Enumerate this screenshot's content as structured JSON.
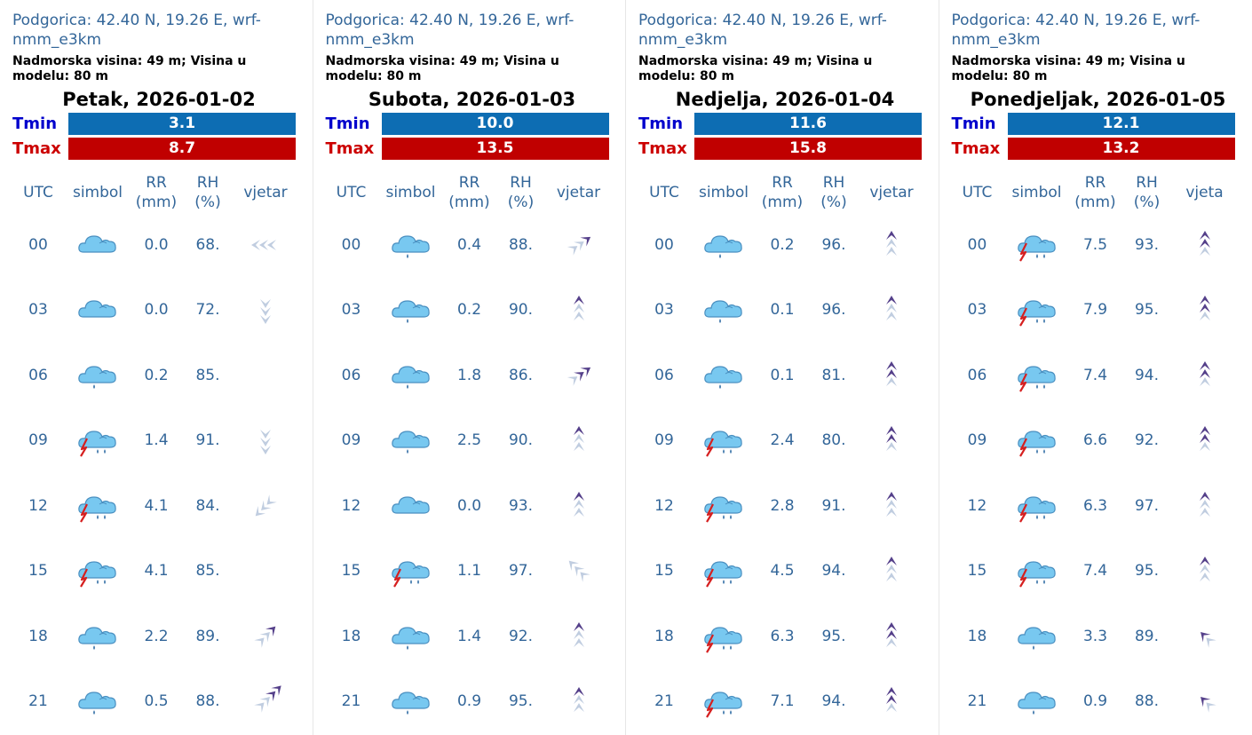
{
  "headers": {
    "utc": "UTC",
    "simbol": "simbol",
    "rr": "RR\n(mm)",
    "rh": "RH\n(%)",
    "wind": "vjetar",
    "wind_cut": "vjeta"
  },
  "labels": {
    "tmin": "Tmin",
    "tmax": "Tmax"
  },
  "days": [
    {
      "location": "Podgorica: 42.40 N, 19.26 E, wrf-nmm_e3km",
      "elevation": "Nadmorska visina: 49 m; Visina u modelu: 80 m",
      "date": "Petak, 2026-01-02",
      "tmin": "3.1",
      "tmax": "8.7",
      "wind_header": "vjetar",
      "rows": [
        {
          "utc": "00",
          "symbol": "cloud-icon",
          "rr": "0.0",
          "rh": "68.",
          "wind": {
            "dir": 270,
            "light": 3,
            "dark": 0
          }
        },
        {
          "utc": "03",
          "symbol": "cloud-icon",
          "rr": "0.0",
          "rh": "72.",
          "wind": {
            "dir": 180,
            "light": 3,
            "dark": 0
          }
        },
        {
          "utc": "06",
          "symbol": "cloud-rain-icon",
          "rr": "0.2",
          "rh": "85.",
          "wind": null
        },
        {
          "utc": "09",
          "symbol": "cloud-thunder-rain-icon",
          "rr": "1.4",
          "rh": "91.",
          "wind": {
            "dir": 180,
            "light": 3,
            "dark": 0
          }
        },
        {
          "utc": "12",
          "symbol": "cloud-thunder-rain-icon",
          "rr": "4.1",
          "rh": "84.",
          "wind": {
            "dir": 225,
            "light": 3,
            "dark": 0
          }
        },
        {
          "utc": "15",
          "symbol": "cloud-thunder-rain-icon",
          "rr": "4.1",
          "rh": "85.",
          "wind": null
        },
        {
          "utc": "18",
          "symbol": "cloud-rain-icon",
          "rr": "2.2",
          "rh": "89.",
          "wind": {
            "dir": 45,
            "light": 2,
            "dark": 1
          }
        },
        {
          "utc": "21",
          "symbol": "cloud-rain-icon",
          "rr": "0.5",
          "rh": "88.",
          "wind": {
            "dir": 45,
            "light": 2,
            "dark": 2
          }
        }
      ]
    },
    {
      "location": "Podgorica: 42.40 N, 19.26 E, wrf-nmm_e3km",
      "elevation": "Nadmorska visina: 49 m; Visina u modelu: 80 m",
      "date": "Subota, 2026-01-03",
      "tmin": "10.0",
      "tmax": "13.5",
      "wind_header": "vjetar",
      "rows": [
        {
          "utc": "00",
          "symbol": "cloud-rain-icon",
          "rr": "0.4",
          "rh": "88.",
          "wind": {
            "dir": 55,
            "light": 2,
            "dark": 1
          }
        },
        {
          "utc": "03",
          "symbol": "cloud-rain-icon",
          "rr": "0.2",
          "rh": "90.",
          "wind": {
            "dir": 0,
            "light": 2,
            "dark": 1
          }
        },
        {
          "utc": "06",
          "symbol": "cloud-rain-icon",
          "rr": "1.8",
          "rh": "86.",
          "wind": {
            "dir": 55,
            "light": 1,
            "dark": 2
          }
        },
        {
          "utc": "09",
          "symbol": "cloud-rain-icon",
          "rr": "2.5",
          "rh": "90.",
          "wind": {
            "dir": 0,
            "light": 2,
            "dark": 1
          }
        },
        {
          "utc": "12",
          "symbol": "cloud-icon",
          "rr": "0.0",
          "rh": "93.",
          "wind": {
            "dir": 0,
            "light": 2,
            "dark": 1
          }
        },
        {
          "utc": "15",
          "symbol": "cloud-thunder-rain-icon",
          "rr": "1.1",
          "rh": "97.",
          "wind": {
            "dir": 315,
            "light": 3,
            "dark": 0
          }
        },
        {
          "utc": "18",
          "symbol": "cloud-rain-icon",
          "rr": "1.4",
          "rh": "92.",
          "wind": {
            "dir": 0,
            "light": 2,
            "dark": 1
          }
        },
        {
          "utc": "21",
          "symbol": "cloud-rain-icon",
          "rr": "0.9",
          "rh": "95.",
          "wind": {
            "dir": 0,
            "light": 2,
            "dark": 1
          }
        }
      ]
    },
    {
      "location": "Podgorica: 42.40 N, 19.26 E, wrf-nmm_e3km",
      "elevation": "Nadmorska visina: 49 m; Visina u modelu: 80 m",
      "date": "Nedjelja, 2026-01-04",
      "tmin": "11.6",
      "tmax": "15.8",
      "wind_header": "vjetar",
      "rows": [
        {
          "utc": "00",
          "symbol": "cloud-rain-icon",
          "rr": "0.2",
          "rh": "96.",
          "wind": {
            "dir": 0,
            "light": 2,
            "dark": 1
          }
        },
        {
          "utc": "03",
          "symbol": "cloud-rain-icon",
          "rr": "0.1",
          "rh": "96.",
          "wind": {
            "dir": 0,
            "light": 2,
            "dark": 1
          }
        },
        {
          "utc": "06",
          "symbol": "cloud-rain-icon",
          "rr": "0.1",
          "rh": "81.",
          "wind": {
            "dir": 0,
            "light": 1,
            "dark": 2
          }
        },
        {
          "utc": "09",
          "symbol": "cloud-thunder-rain-icon",
          "rr": "2.4",
          "rh": "80.",
          "wind": {
            "dir": 0,
            "light": 1,
            "dark": 2
          }
        },
        {
          "utc": "12",
          "symbol": "cloud-thunder-rain-icon",
          "rr": "2.8",
          "rh": "91.",
          "wind": {
            "dir": 0,
            "light": 2,
            "dark": 1
          }
        },
        {
          "utc": "15",
          "symbol": "cloud-thunder-rain-icon",
          "rr": "4.5",
          "rh": "94.",
          "wind": {
            "dir": 0,
            "light": 2,
            "dark": 1
          }
        },
        {
          "utc": "18",
          "symbol": "cloud-thunder-rain-icon",
          "rr": "6.3",
          "rh": "95.",
          "wind": {
            "dir": 0,
            "light": 1,
            "dark": 2
          }
        },
        {
          "utc": "21",
          "symbol": "cloud-thunder-rain-icon",
          "rr": "7.1",
          "rh": "94.",
          "wind": {
            "dir": 0,
            "light": 1,
            "dark": 2
          }
        }
      ]
    },
    {
      "location": "Podgorica: 42.40 N, 19.26 E, wrf-nmm_e3km",
      "elevation": "Nadmorska visina: 49 m; Visina u modelu: 80 m",
      "date": "Ponedjeljak, 2026-01-05",
      "tmin": "12.1",
      "tmax": "13.2",
      "wind_header": "vjeta",
      "rows": [
        {
          "utc": "00",
          "symbol": "cloud-thunder-rain-icon",
          "rr": "7.5",
          "rh": "93.",
          "wind": {
            "dir": 0,
            "light": 1,
            "dark": 2
          }
        },
        {
          "utc": "03",
          "symbol": "cloud-thunder-rain-icon",
          "rr": "7.9",
          "rh": "95.",
          "wind": {
            "dir": 0,
            "light": 1,
            "dark": 2
          }
        },
        {
          "utc": "06",
          "symbol": "cloud-thunder-rain-icon",
          "rr": "7.4",
          "rh": "94.",
          "wind": {
            "dir": 0,
            "light": 1,
            "dark": 2
          }
        },
        {
          "utc": "09",
          "symbol": "cloud-thunder-rain-icon",
          "rr": "6.6",
          "rh": "92.",
          "wind": {
            "dir": 0,
            "light": 1,
            "dark": 2
          }
        },
        {
          "utc": "12",
          "symbol": "cloud-thunder-rain-icon",
          "rr": "6.3",
          "rh": "97.",
          "wind": {
            "dir": 0,
            "light": 2,
            "dark": 1
          }
        },
        {
          "utc": "15",
          "symbol": "cloud-thunder-rain-icon",
          "rr": "7.4",
          "rh": "95.",
          "wind": {
            "dir": 0,
            "light": 2,
            "dark": 1
          }
        },
        {
          "utc": "18",
          "symbol": "cloud-rain-icon",
          "rr": "3.3",
          "rh": "89.",
          "wind": {
            "dir": 315,
            "light": 1,
            "dark": 1
          }
        },
        {
          "utc": "21",
          "symbol": "cloud-rain-icon",
          "rr": "0.9",
          "rh": "88.",
          "wind": {
            "dir": 315,
            "light": 1,
            "dark": 1
          }
        }
      ]
    }
  ],
  "colors": {
    "text": "#336699",
    "tmin_bar": "#0d6db3",
    "tmax_bar": "#c00000",
    "tmin_label": "#0000cc",
    "tmax_label": "#cc0000",
    "cloud": "#78c8f0",
    "cloud_stroke": "#4a8fc0",
    "rain": "#4a7fb0",
    "lightning": "#d62020",
    "wind_light": "#c0cde0",
    "wind_dark": "#55408a"
  }
}
